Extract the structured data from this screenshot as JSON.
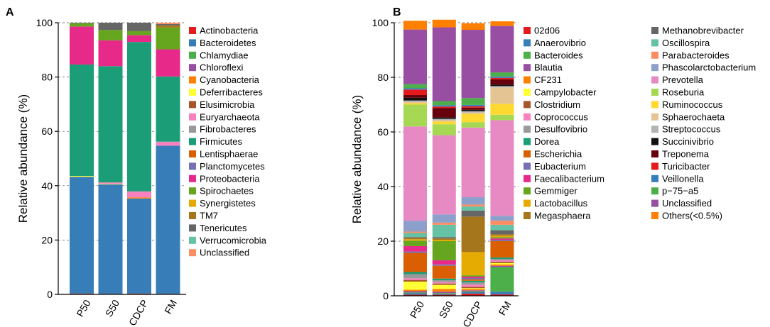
{
  "chart_data": [
    {
      "panel": "A",
      "type": "bar",
      "stacked": true,
      "ylabel": "Relative abundance (%)",
      "xlabel": "",
      "ylim": [
        0,
        100
      ],
      "yticks": [
        0,
        20,
        40,
        60,
        80,
        100
      ],
      "grid": "dashed-horizontal",
      "legend_position": "right",
      "categories": [
        "P50",
        "S50",
        "CDCP",
        "FM"
      ],
      "series": [
        {
          "name": "Actinobacteria",
          "color": "#e41a1c",
          "values": [
            0.3,
            0.2,
            0.3,
            0.2
          ]
        },
        {
          "name": "Bacteroidetes",
          "color": "#377eb8",
          "values": [
            43,
            40.3,
            35,
            54.5
          ]
        },
        {
          "name": "Chlamydiae",
          "color": "#4daf4a",
          "values": [
            0,
            0,
            0,
            0
          ]
        },
        {
          "name": "Chloroflexi",
          "color": "#984ea3",
          "values": [
            0,
            0,
            0,
            0
          ]
        },
        {
          "name": "Cyanobacteria",
          "color": "#ff7f00",
          "values": [
            0,
            0,
            0.4,
            0
          ]
        },
        {
          "name": "Deferribacteres",
          "color": "#ffff33",
          "values": [
            0.3,
            0.2,
            0,
            0
          ]
        },
        {
          "name": "Elusimicrobia",
          "color": "#a65628",
          "values": [
            0,
            0,
            0,
            0
          ]
        },
        {
          "name": "Euryarchaeota",
          "color": "#f781bf",
          "values": [
            0,
            0.5,
            2.2,
            1.5
          ]
        },
        {
          "name": "Fibrobacteres",
          "color": "#999999",
          "values": [
            0,
            0,
            0,
            0
          ]
        },
        {
          "name": "Firmicutes",
          "color": "#1b9e77",
          "values": [
            41,
            42.8,
            55,
            24
          ]
        },
        {
          "name": "Lentisphaerae",
          "color": "#d95f02",
          "values": [
            0,
            0,
            0,
            0
          ]
        },
        {
          "name": "Planctomycetes",
          "color": "#7570b3",
          "values": [
            0,
            0,
            0,
            0
          ]
        },
        {
          "name": "Proteobacteria",
          "color": "#e7298a",
          "values": [
            14,
            9.5,
            2.5,
            10
          ]
        },
        {
          "name": "Spirochaetes",
          "color": "#66a61e",
          "values": [
            1.2,
            3.8,
            1.5,
            8
          ]
        },
        {
          "name": "Synergistetes",
          "color": "#e6ab02",
          "values": [
            0,
            0,
            0,
            0
          ]
        },
        {
          "name": "TM7",
          "color": "#a6761d",
          "values": [
            0,
            0,
            0,
            0.8
          ]
        },
        {
          "name": "Tenericutes",
          "color": "#666666",
          "values": [
            0.2,
            2.7,
            3.1,
            0.5
          ]
        },
        {
          "name": "Verrucomicrobia",
          "color": "#66c2a5",
          "values": [
            0,
            0,
            0,
            0
          ]
        },
        {
          "name": "Unclassified",
          "color": "#fc8d62",
          "values": [
            0,
            0,
            0,
            0.5
          ]
        }
      ]
    },
    {
      "panel": "B",
      "type": "bar",
      "stacked": true,
      "ylabel": "Relative abundance (%)",
      "xlabel": "",
      "ylim": [
        0,
        100
      ],
      "yticks": [
        0,
        20,
        40,
        60,
        80,
        100
      ],
      "grid": "dashed-horizontal",
      "legend_position": "right",
      "categories": [
        "P50",
        "S50",
        "CDCP",
        "FM"
      ],
      "series": [
        {
          "name": "02d06",
          "color": "#e41a1c",
          "values": [
            0.4,
            0.4,
            0.8,
            0.5
          ]
        },
        {
          "name": "Anaerovibrio",
          "color": "#377eb8",
          "values": [
            0.5,
            0.3,
            0.5,
            1
          ]
        },
        {
          "name": "Bacteroides",
          "color": "#4daf4a",
          "values": [
            0.3,
            0.3,
            0.3,
            9
          ]
        },
        {
          "name": "Blautia",
          "color": "#984ea3",
          "values": [
            0.5,
            0.5,
            0.4,
            0.5
          ]
        },
        {
          "name": "CF231",
          "color": "#ff7f00",
          "values": [
            0.5,
            1,
            0.5,
            0.5
          ]
        },
        {
          "name": "Campylobacter",
          "color": "#ffff33",
          "values": [
            3,
            1.5,
            0.3,
            0.5
          ]
        },
        {
          "name": "Clostridium",
          "color": "#a65628",
          "values": [
            0.6,
            0.5,
            0.5,
            0.5
          ]
        },
        {
          "name": "Coprococcus",
          "color": "#f781bf",
          "values": [
            0.6,
            0.5,
            0.8,
            0.5
          ]
        },
        {
          "name": "Desulfovibrio",
          "color": "#999999",
          "values": [
            1.5,
            0.7,
            0.8,
            0.5
          ]
        },
        {
          "name": "Dorea",
          "color": "#1b9e77",
          "values": [
            0.8,
            0.6,
            0.6,
            0.5
          ]
        },
        {
          "name": "Escherichia",
          "color": "#d95f02",
          "values": [
            7,
            4.7,
            0.5,
            6
          ]
        },
        {
          "name": "Eubacterium",
          "color": "#7570b3",
          "values": [
            0.5,
            0.5,
            0.5,
            0.5
          ]
        },
        {
          "name": "Faecalibacterium",
          "color": "#e7298a",
          "values": [
            2,
            1.5,
            0.5,
            0.5
          ]
        },
        {
          "name": "Gemmiger",
          "color": "#66a61e",
          "values": [
            2,
            7,
            0.5,
            0.5
          ]
        },
        {
          "name": "Lactobacillus",
          "color": "#e6ab02",
          "values": [
            0.5,
            0.5,
            8.5,
            0.5
          ]
        },
        {
          "name": "Megasphaera",
          "color": "#a6761d",
          "values": [
            0.5,
            0.5,
            13,
            0.5
          ]
        },
        {
          "name": "Methanobrevibacter",
          "color": "#666666",
          "values": [
            0.3,
            0.5,
            2.2,
            1.5
          ]
        },
        {
          "name": "Oscillospira",
          "color": "#66c2a5",
          "values": [
            1.5,
            4.5,
            1.5,
            2
          ]
        },
        {
          "name": "Parabacteroides",
          "color": "#fc8d62",
          "values": [
            0.5,
            0.8,
            0.7,
            1.5
          ]
        },
        {
          "name": "Phascolarctobacterium",
          "color": "#8da0cb",
          "values": [
            4,
            3,
            2.7,
            1.8
          ]
        },
        {
          "name": "Prevotella",
          "color": "#e78ac3",
          "values": [
            34.5,
            29,
            25.5,
            35
          ]
        },
        {
          "name": "Roseburia",
          "color": "#a6d854",
          "values": [
            8,
            4,
            2,
            2
          ]
        },
        {
          "name": "Ruminococcus",
          "color": "#ffd92f",
          "values": [
            0.5,
            1,
            3,
            4
          ]
        },
        {
          "name": "Sphaerochaeta",
          "color": "#e5c494",
          "values": [
            0.5,
            0.5,
            0.5,
            6
          ]
        },
        {
          "name": "Streptococcus",
          "color": "#b3b3b3",
          "values": [
            0.5,
            0.5,
            0.5,
            0.5
          ]
        },
        {
          "name": "Succinivibrio",
          "color": "#111111",
          "values": [
            1,
            0.5,
            0.5,
            0.5
          ]
        },
        {
          "name": "Treponema",
          "color": "#67000d",
          "values": [
            1,
            3.5,
            0.8,
            2
          ]
        },
        {
          "name": "Turicibacter",
          "color": "#e41a1c",
          "values": [
            2,
            0.5,
            0.5,
            0.5
          ]
        },
        {
          "name": "Veillonella",
          "color": "#377eb8",
          "values": [
            0.5,
            0.5,
            0.5,
            0.5
          ]
        },
        {
          "name": "p−75−a5",
          "color": "#4daf4a",
          "values": [
            1.5,
            1.5,
            2.5,
            1.5
          ]
        },
        {
          "name": "Unclassified",
          "color": "#984ea3",
          "values": [
            20,
            27,
            25,
            17
          ]
        },
        {
          "name": "Others(<0.5%)",
          "color": "#ff7f00",
          "values": [
            3.2,
            2.8,
            2.4,
            1.7
          ]
        }
      ]
    }
  ]
}
